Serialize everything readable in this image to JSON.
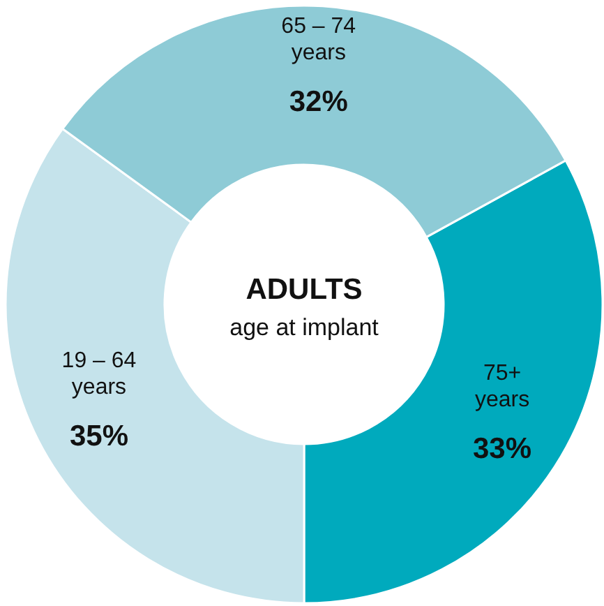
{
  "chart_data": {
    "type": "donut",
    "title": "ADULTS",
    "subtitle": "age at implant",
    "categories": [
      "75+ years",
      "19 – 64 years",
      "65 – 74 years"
    ],
    "values": [
      33,
      35,
      32
    ],
    "colors": [
      "#00aabd",
      "#c5e3eb",
      "#8ecbd6"
    ],
    "value_labels": [
      "33%",
      "35%",
      "32%"
    ]
  }
}
